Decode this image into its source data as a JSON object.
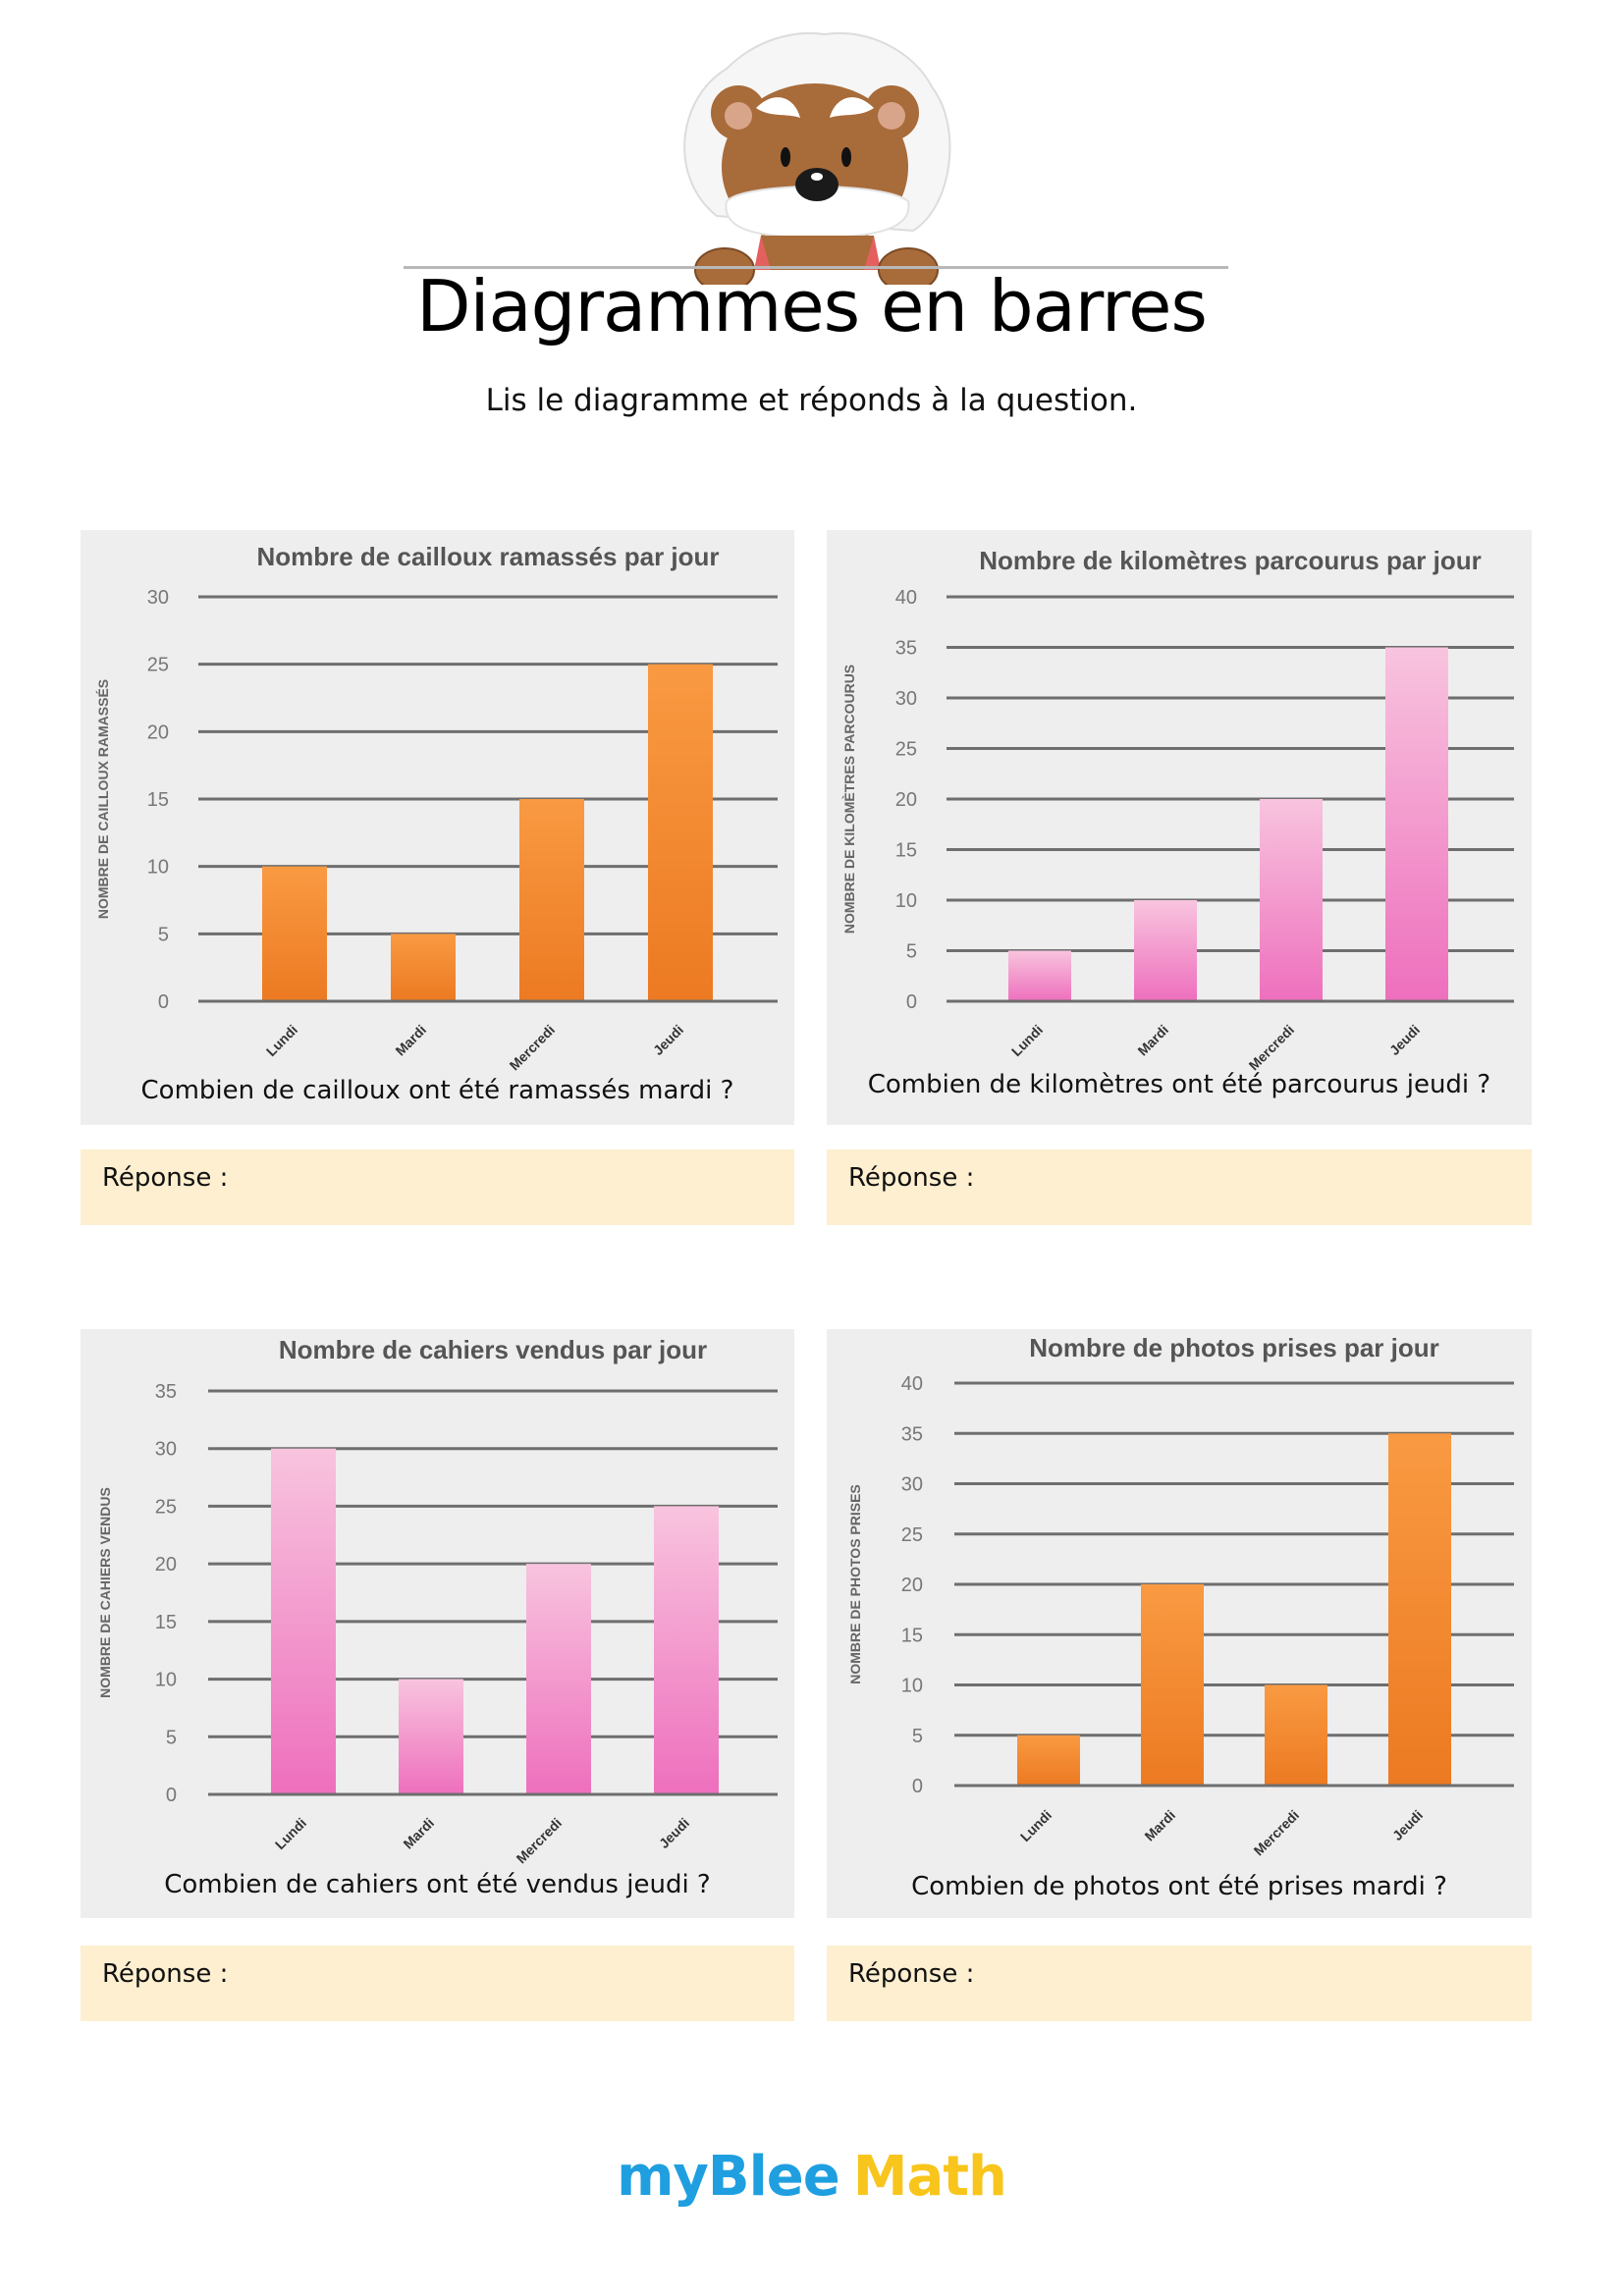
{
  "header": {
    "title": "Diagrammes en barres",
    "subtitle": "Lis le diagramme et réponds à la question.",
    "mascot": "bear-mascot"
  },
  "colors": {
    "orange_top": "#f99a42",
    "orange_bottom": "#ec7a22",
    "pink_top": "#f8c4de",
    "pink_bottom": "#ee6fbd",
    "panel_bg": "#eeeeee",
    "answer_bg": "#fdefcf",
    "logo_blue": "#1f9fe0",
    "logo_yellow": "#f8c51c"
  },
  "exercises": [
    {
      "question": "Combien de cailloux ont été ramassés mardi ?",
      "answer_label": "Réponse :"
    },
    {
      "question": "Combien de kilomètres ont été parcourus jeudi ?",
      "answer_label": "Réponse :"
    },
    {
      "question": "Combien de cahiers ont été vendus jeudi ?",
      "answer_label": "Réponse :"
    },
    {
      "question": "Combien de photos ont été prises mardi ?",
      "answer_label": "Réponse :"
    }
  ],
  "chart_data": [
    {
      "type": "bar",
      "title": "Nombre de cailloux ramassés par jour",
      "xlabel": "",
      "ylabel": "NOMBRE DE CAILLOUX RAMASSÉS",
      "categories": [
        "Lundi",
        "Mardi",
        "Mercredi",
        "Jeudi"
      ],
      "values": [
        10,
        5,
        15,
        25
      ],
      "ylim": [
        0,
        30
      ],
      "yticks": [
        0,
        5,
        10,
        15,
        20,
        25,
        30
      ],
      "grid": true,
      "color": "orange"
    },
    {
      "type": "bar",
      "title": "Nombre de kilomètres parcourus par jour",
      "xlabel": "",
      "ylabel": "NOMBRE DE KILOMÈTRES PARCOURUS",
      "categories": [
        "Lundi",
        "Mardi",
        "Mercredi",
        "Jeudi"
      ],
      "values": [
        5,
        10,
        20,
        35
      ],
      "ylim": [
        0,
        40
      ],
      "yticks": [
        0,
        5,
        10,
        15,
        20,
        25,
        30,
        35,
        40
      ],
      "grid": true,
      "color": "pink"
    },
    {
      "type": "bar",
      "title": "Nombre de cahiers vendus par jour",
      "xlabel": "",
      "ylabel": "NOMBRE DE CAHIERS VENDUS",
      "categories": [
        "Lundi",
        "Mardi",
        "Mercredi",
        "Jeudi"
      ],
      "values": [
        30,
        10,
        20,
        25
      ],
      "ylim": [
        0,
        35
      ],
      "yticks": [
        0,
        5,
        10,
        15,
        20,
        25,
        30,
        35
      ],
      "grid": true,
      "color": "pink"
    },
    {
      "type": "bar",
      "title": "Nombre de photos prises par jour",
      "xlabel": "",
      "ylabel": "NOMBRE DE PHOTOS PRISES",
      "categories": [
        "Lundi",
        "Mardi",
        "Mercredi",
        "Jeudi"
      ],
      "values": [
        5,
        20,
        10,
        35
      ],
      "ylim": [
        0,
        40
      ],
      "yticks": [
        0,
        5,
        10,
        15,
        20,
        25,
        30,
        35,
        40
      ],
      "grid": true,
      "color": "orange"
    }
  ],
  "footer": {
    "logo_part1": "myBlee",
    "logo_part2": "Math"
  }
}
